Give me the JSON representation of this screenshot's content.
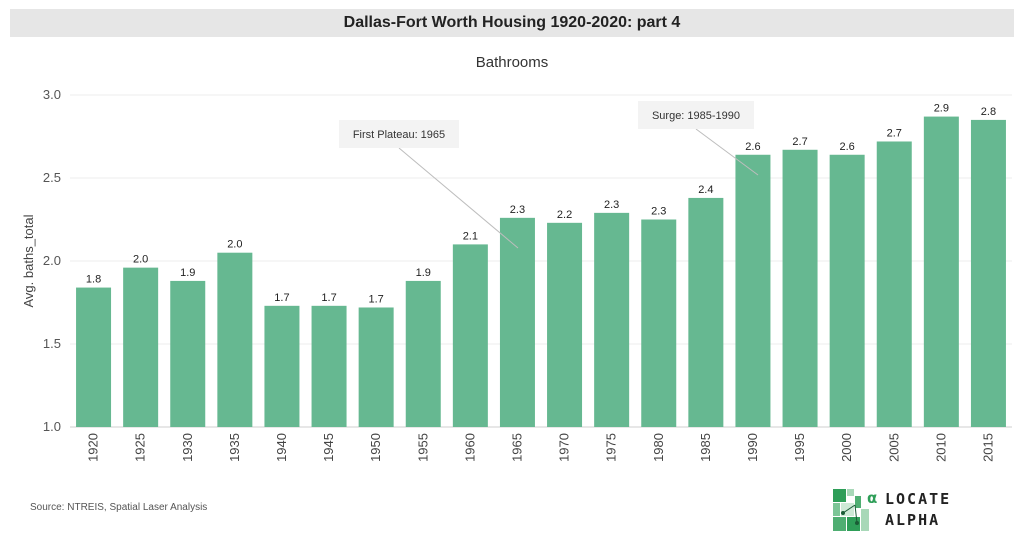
{
  "header": {
    "title": "Dallas-Fort Worth Housing 1920-2020: part 4"
  },
  "chart_data": {
    "type": "bar",
    "title": "Bathrooms",
    "xlabel": "",
    "ylabel": "Avg. baths_total",
    "ylim": [
      1.0,
      3.0
    ],
    "yticks": [
      1.0,
      1.5,
      2.0,
      2.5,
      3.0
    ],
    "ytick_labels": [
      "1.0",
      "1.5",
      "2.0",
      "2.5",
      "3.0"
    ],
    "grid": true,
    "categories": [
      "1920",
      "1925",
      "1930",
      "1935",
      "1940",
      "1945",
      "1950",
      "1955",
      "1960",
      "1965",
      "1970",
      "1975",
      "1980",
      "1985",
      "1990",
      "1995",
      "2000",
      "2005",
      "2010",
      "2015"
    ],
    "values": [
      1.84,
      1.96,
      1.88,
      2.05,
      1.73,
      1.73,
      1.72,
      1.88,
      2.1,
      2.26,
      2.23,
      2.29,
      2.25,
      2.38,
      2.64,
      2.67,
      2.64,
      2.72,
      2.87,
      2.85
    ],
    "data_labels": [
      "1.8",
      "2.0",
      "1.9",
      "2.0",
      "1.7",
      "1.7",
      "1.7",
      "1.9",
      "2.1",
      "2.3",
      "2.2",
      "2.3",
      "2.3",
      "2.4",
      "2.6",
      "2.7",
      "2.6",
      "2.7",
      "2.9",
      "2.8"
    ],
    "bar_color": "#66b891",
    "annotations": [
      {
        "text": "First Plateau: 1965",
        "target": "1965"
      },
      {
        "text": "Surge: 1985-1990",
        "target": "1990"
      }
    ]
  },
  "footer": {
    "source": "Source: NTREIS, Spatial Laser Analysis",
    "logo_line1": "LOCATE",
    "logo_line2": "ALPHA",
    "logo_symbol": "α",
    "logo_color": "#2e9e58"
  }
}
